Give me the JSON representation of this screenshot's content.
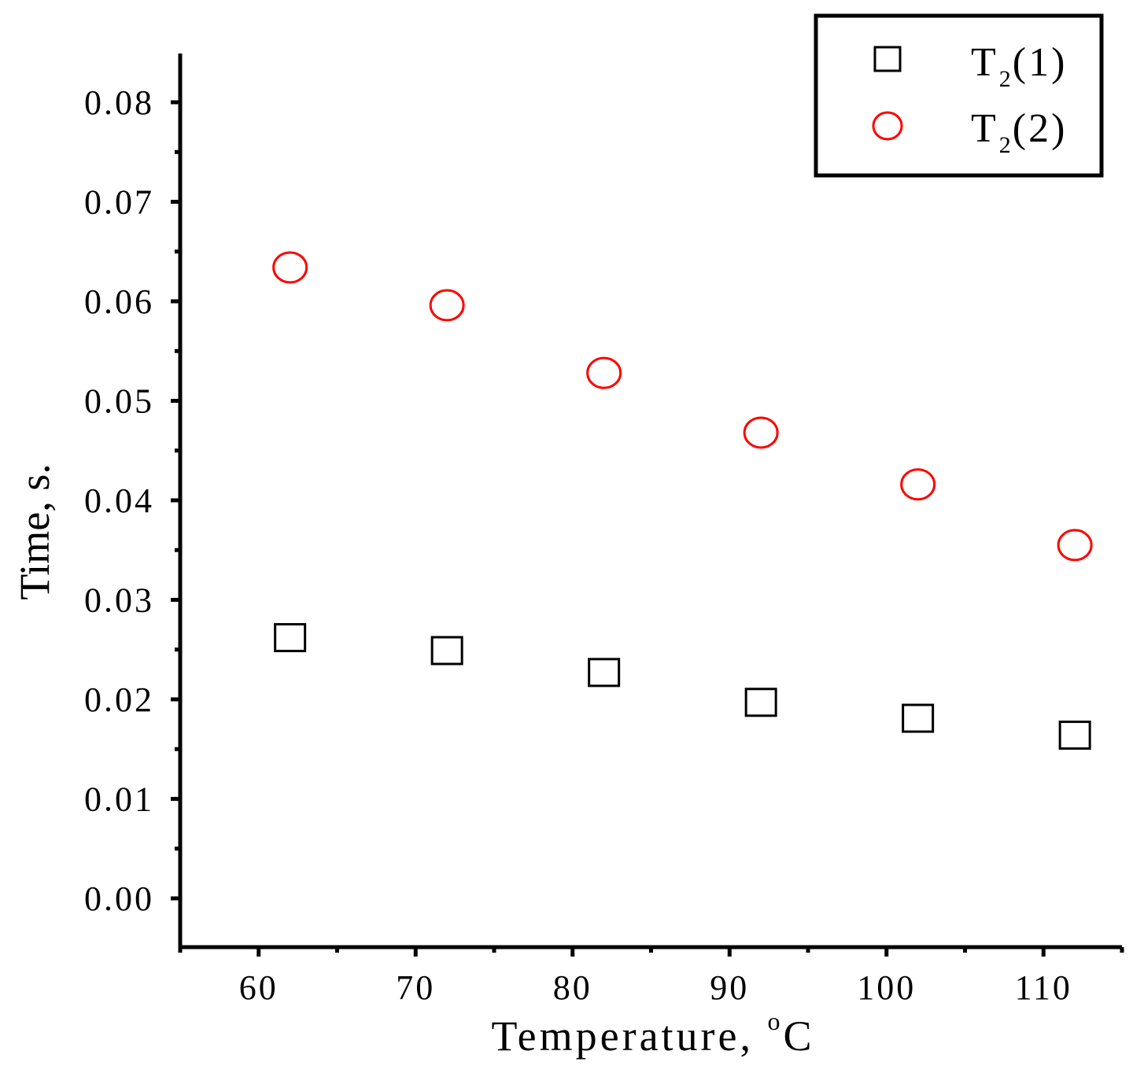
{
  "chart_data": {
    "type": "scatter",
    "xlabel": "Temperature, ",
    "xlabel_sup": "o",
    "xlabel_unit": "C",
    "ylabel": "Time, s.",
    "xlim": [
      55,
      115
    ],
    "ylim": [
      -0.0049,
      0.0849
    ],
    "xticks": [
      60,
      70,
      80,
      90,
      100,
      110
    ],
    "xtick_labels": [
      "60",
      "70",
      "80",
      "90",
      "100",
      "110"
    ],
    "yticks": [
      0.0,
      0.01,
      0.02,
      0.03,
      0.04,
      0.05,
      0.06,
      0.07,
      0.08
    ],
    "ytick_labels": [
      "0.00",
      "0.01",
      "0.02",
      "0.03",
      "0.04",
      "0.05",
      "0.06",
      "0.07",
      "0.08"
    ],
    "grid": false,
    "legend_position": "top-right",
    "series": [
      {
        "name": "T2(1)",
        "legend_main": "T",
        "legend_sub": "2",
        "legend_tail": "(1)",
        "marker": "square",
        "color": "#000000",
        "x": [
          62,
          72,
          82,
          92,
          102,
          112
        ],
        "y": [
          0.0262,
          0.0249,
          0.0227,
          0.0197,
          0.0181,
          0.0164
        ]
      },
      {
        "name": "T2(2)",
        "legend_main": "T",
        "legend_sub": "2",
        "legend_tail": "(2)",
        "marker": "circle",
        "color": "#ff0000",
        "x": [
          62,
          72,
          82,
          92,
          102,
          112
        ],
        "y": [
          0.0634,
          0.0596,
          0.0528,
          0.0468,
          0.0416,
          0.0355
        ]
      }
    ]
  }
}
